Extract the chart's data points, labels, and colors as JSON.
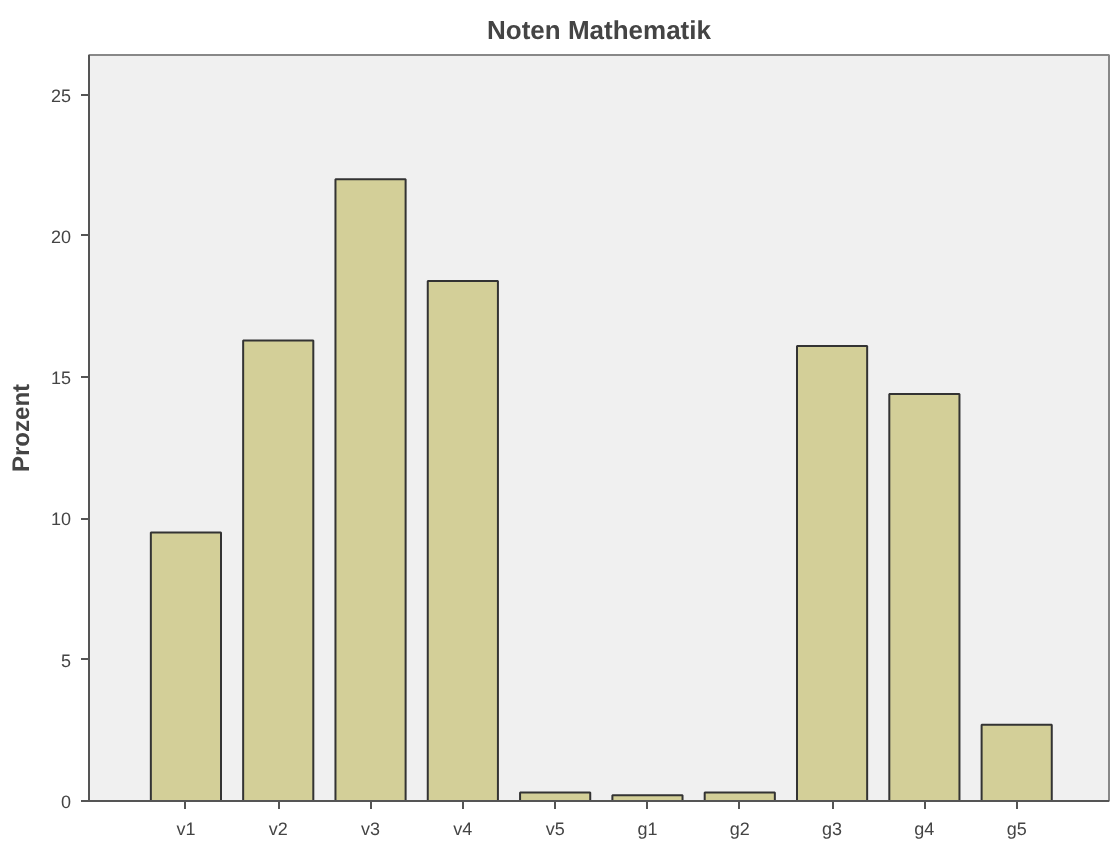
{
  "chart_data": {
    "type": "bar",
    "title": "Noten Mathematik",
    "ylabel": "Prozent",
    "categories": [
      "v1",
      "v2",
      "v3",
      "v4",
      "v5",
      "g1",
      "g2",
      "g3",
      "g4",
      "g5"
    ],
    "values": [
      9.5,
      16.3,
      22.0,
      18.4,
      0.3,
      0.2,
      0.3,
      16.1,
      14.4,
      2.7
    ],
    "color": "#d3cf98",
    "ylim": [
      0,
      26.4
    ],
    "yticks": [
      0,
      5,
      10,
      15,
      20,
      25
    ],
    "grid": false
  }
}
